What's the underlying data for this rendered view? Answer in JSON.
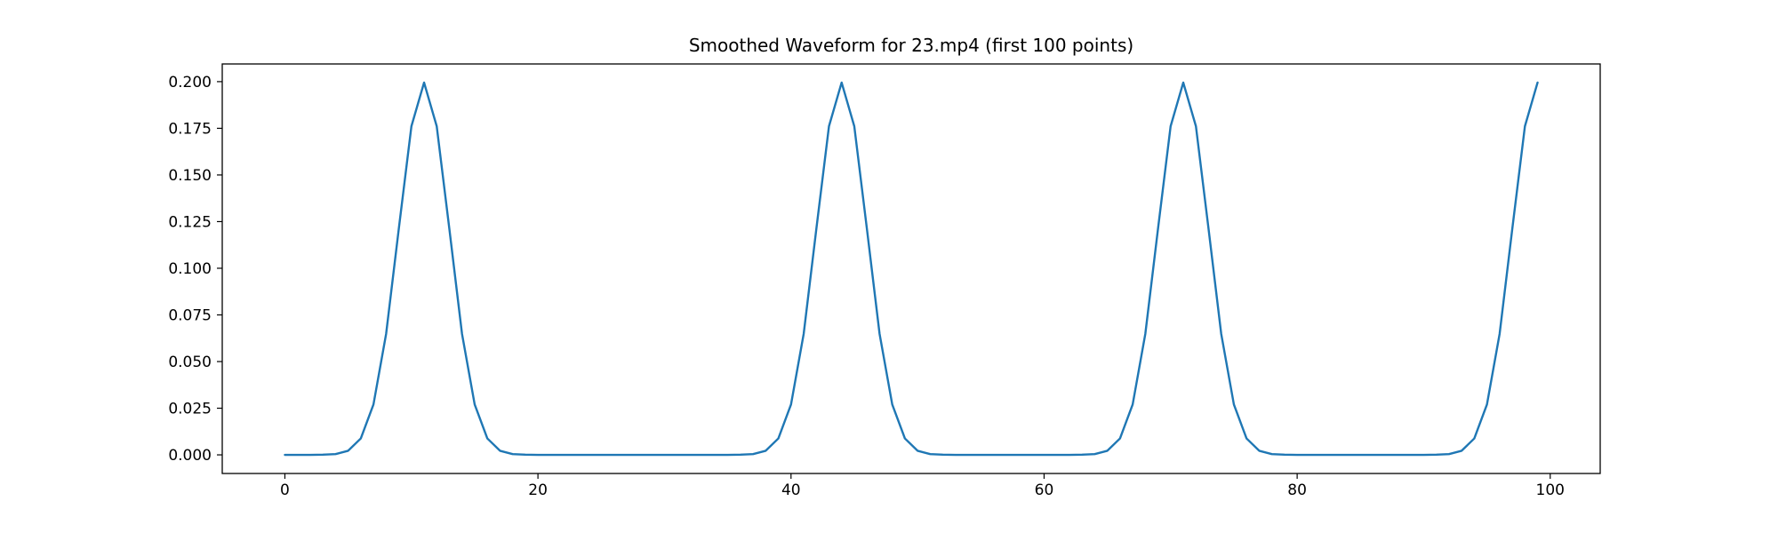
{
  "chart_data": {
    "type": "line",
    "title": "Smoothed Waveform for 23.mp4 (first 100 points)",
    "xlabel": "",
    "ylabel": "",
    "line_color": "#1f77b4",
    "background_color": "#ffffff",
    "axis_color": "#000000",
    "grid": false,
    "legend": "none",
    "xlim": [
      -4.95,
      103.95
    ],
    "ylim": [
      -0.00998,
      0.20948
    ],
    "x_ticks": [
      0,
      20,
      40,
      60,
      80,
      100
    ],
    "x_tick_labels": [
      "0",
      "20",
      "40",
      "60",
      "80",
      "100"
    ],
    "y_ticks": [
      0.0,
      0.025,
      0.05,
      0.075,
      0.1,
      0.125,
      0.15,
      0.175,
      0.2
    ],
    "y_tick_labels": [
      "0.000",
      "0.025",
      "0.050",
      "0.075",
      "0.100",
      "0.125",
      "0.150",
      "0.175",
      "0.200"
    ],
    "peaks_at_x": [
      11,
      44,
      71,
      99
    ],
    "peak_value": 0.1995,
    "x": [
      0,
      1,
      2,
      3,
      4,
      5,
      6,
      7,
      8,
      9,
      10,
      11,
      12,
      13,
      14,
      15,
      16,
      17,
      18,
      19,
      20,
      21,
      22,
      23,
      24,
      25,
      26,
      27,
      28,
      29,
      30,
      31,
      32,
      33,
      34,
      35,
      36,
      37,
      38,
      39,
      40,
      41,
      42,
      43,
      44,
      45,
      46,
      47,
      48,
      49,
      50,
      51,
      52,
      53,
      54,
      55,
      56,
      57,
      58,
      59,
      60,
      61,
      62,
      63,
      64,
      65,
      66,
      67,
      68,
      69,
      70,
      71,
      72,
      73,
      74,
      75,
      76,
      77,
      78,
      79,
      80,
      81,
      82,
      83,
      84,
      85,
      86,
      87,
      88,
      89,
      90,
      91,
      92,
      93,
      94,
      95,
      96,
      97,
      98,
      99
    ],
    "y": [
      0.0,
      0.0,
      0.0,
      0.0001,
      0.0004,
      0.0022,
      0.0088,
      0.027,
      0.0648,
      0.121,
      0.1761,
      0.1995,
      0.1761,
      0.121,
      0.0648,
      0.027,
      0.0088,
      0.0022,
      0.0004,
      0.0001,
      0.0,
      0.0,
      0.0,
      0.0,
      0.0,
      0.0,
      0.0,
      0.0,
      0.0,
      0.0,
      0.0,
      0.0,
      0.0,
      0.0,
      0.0,
      0.0,
      0.0001,
      0.0004,
      0.0022,
      0.0088,
      0.027,
      0.0648,
      0.121,
      0.1761,
      0.1995,
      0.1761,
      0.121,
      0.0648,
      0.027,
      0.0088,
      0.0022,
      0.0004,
      0.0001,
      0.0,
      0.0,
      0.0,
      0.0,
      0.0,
      0.0,
      0.0,
      0.0,
      0.0,
      0.0,
      0.0001,
      0.0004,
      0.0022,
      0.0088,
      0.027,
      0.0648,
      0.121,
      0.1761,
      0.1995,
      0.1761,
      0.121,
      0.0648,
      0.027,
      0.0088,
      0.0022,
      0.0004,
      0.0001,
      0.0,
      0.0,
      0.0,
      0.0,
      0.0,
      0.0,
      0.0,
      0.0,
      0.0,
      0.0,
      0.0,
      0.0001,
      0.0004,
      0.0022,
      0.0088,
      0.027,
      0.0648,
      0.121,
      0.1761,
      0.1995
    ]
  }
}
